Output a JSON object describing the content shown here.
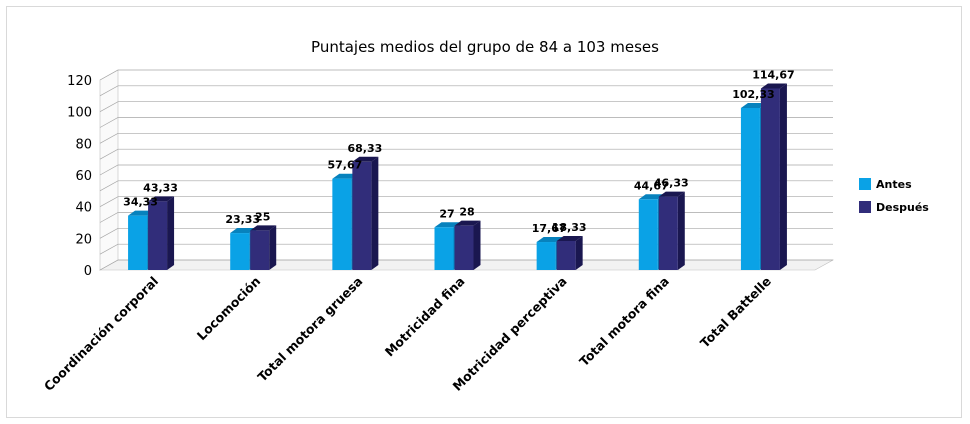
{
  "chart_data": {
    "type": "bar",
    "title": "Puntajes medios del grupo de 84 a 103 meses",
    "categories": [
      "Coordinación corporal",
      "Locomoción",
      "Total motora gruesa",
      "Motricidad fina",
      "Motricidad perceptiva",
      "Total motora fina",
      "Total Battelle"
    ],
    "series": [
      {
        "name": "Antes",
        "values": [
          34.33,
          23.33,
          57.67,
          27,
          17.67,
          44.67,
          102.33
        ],
        "labels": [
          "34,33",
          "23,33",
          "57,67",
          "27",
          "17,67",
          "44,67",
          "102,33"
        ],
        "color": "#0aa2e6",
        "side": "#0782bd"
      },
      {
        "name": "Después",
        "values": [
          43.33,
          25,
          68.33,
          28,
          18.33,
          46.33,
          114.67
        ],
        "labels": [
          "43,33",
          "25",
          "68,33",
          "28",
          "18,33",
          "46,33",
          "114,67"
        ],
        "color": "#312d7a",
        "side": "#1a1750"
      }
    ],
    "ylim": [
      0,
      120
    ],
    "yticks": [
      "0",
      "20",
      "40",
      "60",
      "80",
      "100",
      "120"
    ],
    "grid": true,
    "legend": "right"
  }
}
